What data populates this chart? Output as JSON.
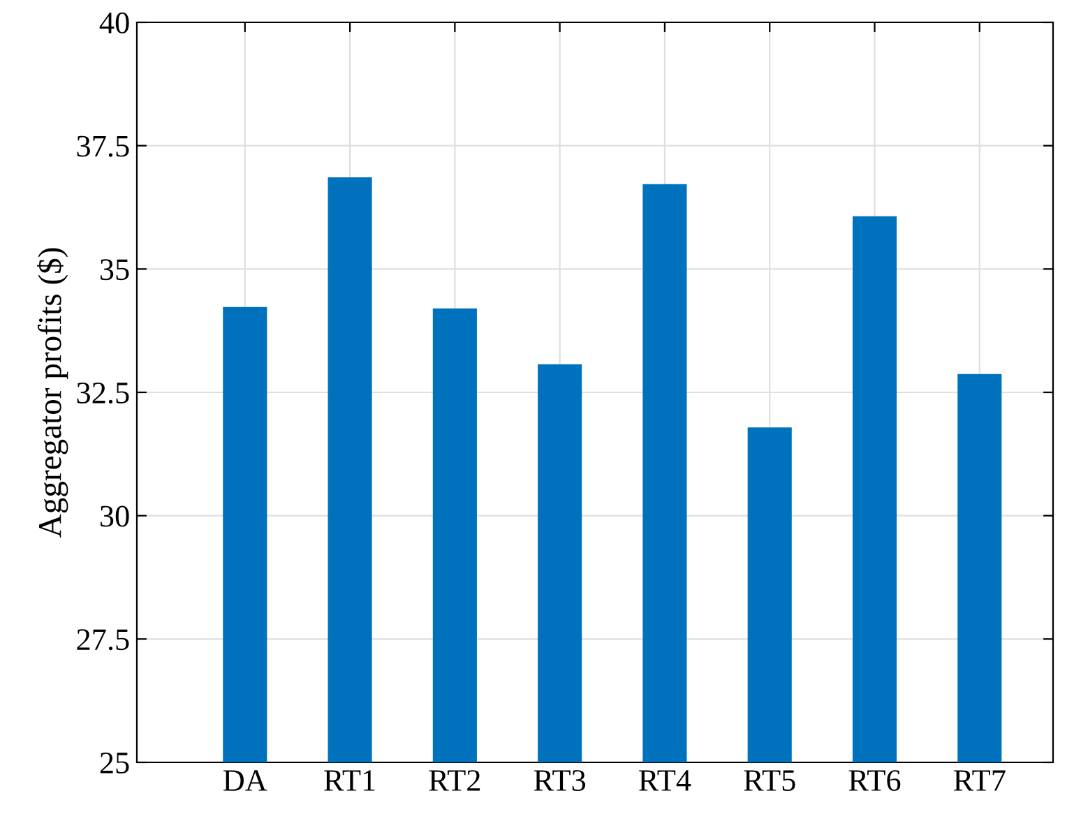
{
  "chart_data": {
    "type": "bar",
    "ylabel": "Aggregator profits ($)",
    "categories": [
      "DA",
      "RT1",
      "RT2",
      "RT3",
      "RT4",
      "RT5",
      "RT6",
      "RT7"
    ],
    "values": [
      34.23,
      36.86,
      34.2,
      33.07,
      36.72,
      31.79,
      36.07,
      32.87
    ],
    "color": "#0072bd",
    "ylim": [
      25,
      40
    ],
    "yticks": [
      25,
      27.5,
      30,
      32.5,
      35,
      37.5,
      40
    ],
    "grid": true
  }
}
